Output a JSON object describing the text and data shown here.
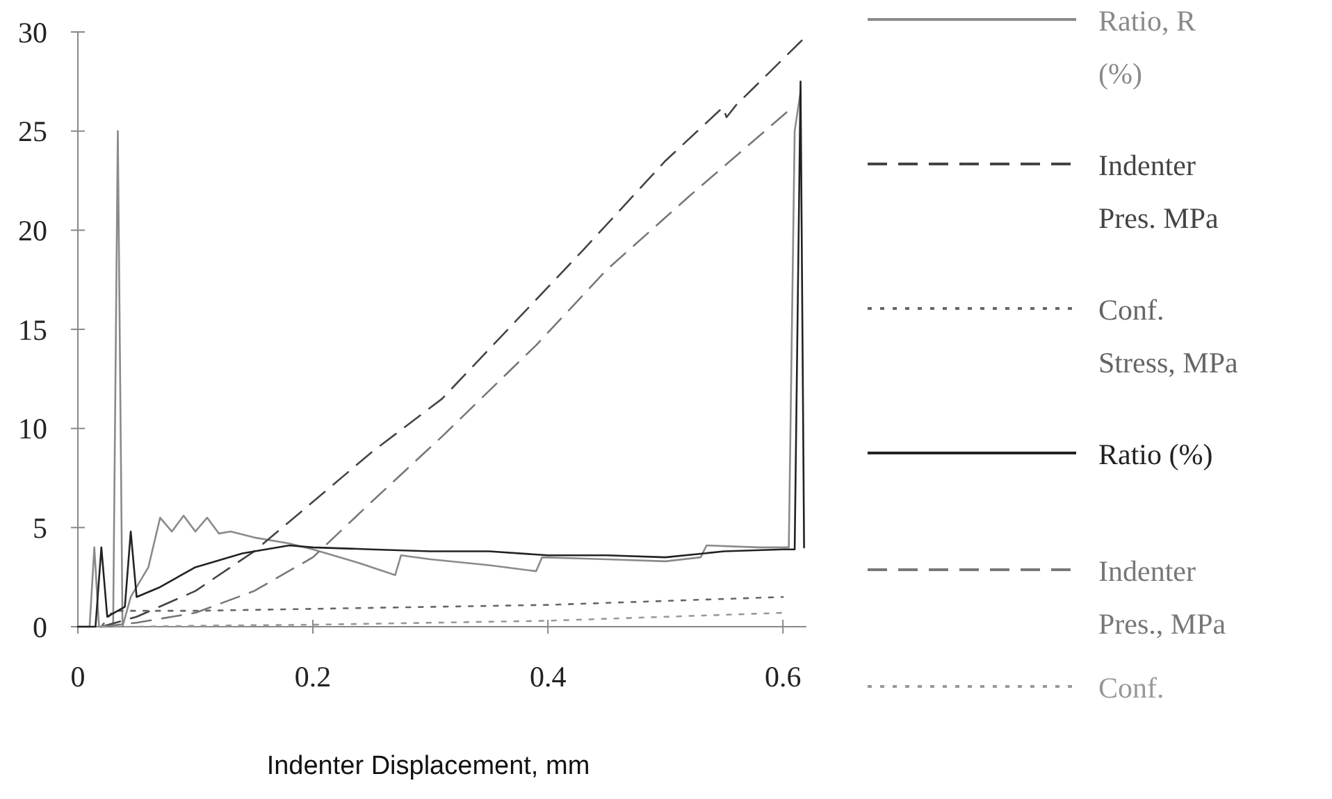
{
  "chart_data": {
    "type": "line",
    "xlabel": "Indenter Displacement, mm",
    "xlim": [
      0,
      0.62
    ],
    "ylim": [
      0,
      30
    ],
    "xticks": [
      0,
      0.2,
      0.4,
      0.6
    ],
    "yticks": [
      0,
      5,
      10,
      15,
      20,
      25,
      30
    ],
    "legend": "right",
    "grid": false,
    "marker": "none",
    "series": [
      {
        "name": "Ratio, R\n(%)",
        "color": "#8a8a8a",
        "line_style": "solid",
        "x": [
          0.0,
          0.01,
          0.014,
          0.018,
          0.022,
          0.03,
          0.034,
          0.038,
          0.045,
          0.05,
          0.06,
          0.07,
          0.08,
          0.09,
          0.1,
          0.11,
          0.12,
          0.13,
          0.15,
          0.18,
          0.2,
          0.24,
          0.27,
          0.275,
          0.3,
          0.35,
          0.39,
          0.395,
          0.45,
          0.5,
          0.53,
          0.535,
          0.58,
          0.605,
          0.61,
          0.615
        ],
        "values": [
          0,
          0,
          4,
          0,
          0,
          0,
          25,
          0,
          1.5,
          2,
          3,
          5.5,
          4.8,
          5.6,
          4.8,
          5.5,
          4.7,
          4.8,
          4.5,
          4.2,
          3.9,
          3.2,
          2.6,
          3.6,
          3.4,
          3.1,
          2.8,
          3.5,
          3.4,
          3.3,
          3.5,
          4.1,
          4.0,
          4.0,
          25,
          27
        ]
      },
      {
        "name": "Indenter\nPres. MPa",
        "color": "#444444",
        "line_style": "dashed",
        "x": [
          0.02,
          0.05,
          0.1,
          0.15,
          0.2,
          0.25,
          0.31,
          0.35,
          0.43,
          0.5,
          0.549,
          0.552,
          0.56,
          0.62
        ],
        "values": [
          0,
          0.5,
          1.8,
          3.8,
          6.3,
          8.8,
          11.5,
          14,
          19,
          23.5,
          26.2,
          25.7,
          26.3,
          29.8
        ]
      },
      {
        "name": "Conf.\nStress, MPa",
        "color": "#666666",
        "line_style": "dotted",
        "x": [
          0.02,
          0.03,
          0.1,
          0.2,
          0.3,
          0.4,
          0.5,
          0.6
        ],
        "values": [
          0,
          0.8,
          0.8,
          0.9,
          1.0,
          1.1,
          1.3,
          1.5
        ]
      },
      {
        "name": "Ratio (%)",
        "color": "#222222",
        "line_style": "solid",
        "x": [
          0,
          0.015,
          0.02,
          0.025,
          0.04,
          0.045,
          0.05,
          0.07,
          0.1,
          0.14,
          0.18,
          0.2,
          0.25,
          0.3,
          0.35,
          0.4,
          0.45,
          0.5,
          0.55,
          0.6,
          0.61,
          0.615,
          0.618
        ],
        "values": [
          0,
          0,
          4,
          0.5,
          1,
          4.8,
          1.5,
          2,
          3,
          3.7,
          4.1,
          4.0,
          3.9,
          3.8,
          3.8,
          3.6,
          3.6,
          3.5,
          3.8,
          3.9,
          3.9,
          27.5,
          4
        ]
      },
      {
        "name": "Indenter\nPres., MPa",
        "color": "#777777",
        "line_style": "dashed",
        "x": [
          0.02,
          0.05,
          0.1,
          0.15,
          0.2,
          0.25,
          0.31,
          0.39,
          0.45,
          0.52,
          0.61
        ],
        "values": [
          0,
          0.2,
          0.7,
          1.8,
          3.5,
          6.3,
          9.6,
          14.2,
          18,
          21.7,
          26.3
        ]
      },
      {
        "name": "Conf.",
        "color": "#999999",
        "line_style": "dotted",
        "x": [
          0.02,
          0.05,
          0.1,
          0.2,
          0.3,
          0.4,
          0.5,
          0.6
        ],
        "values": [
          0,
          0,
          0.05,
          0.1,
          0.2,
          0.3,
          0.5,
          0.7
        ]
      }
    ]
  }
}
